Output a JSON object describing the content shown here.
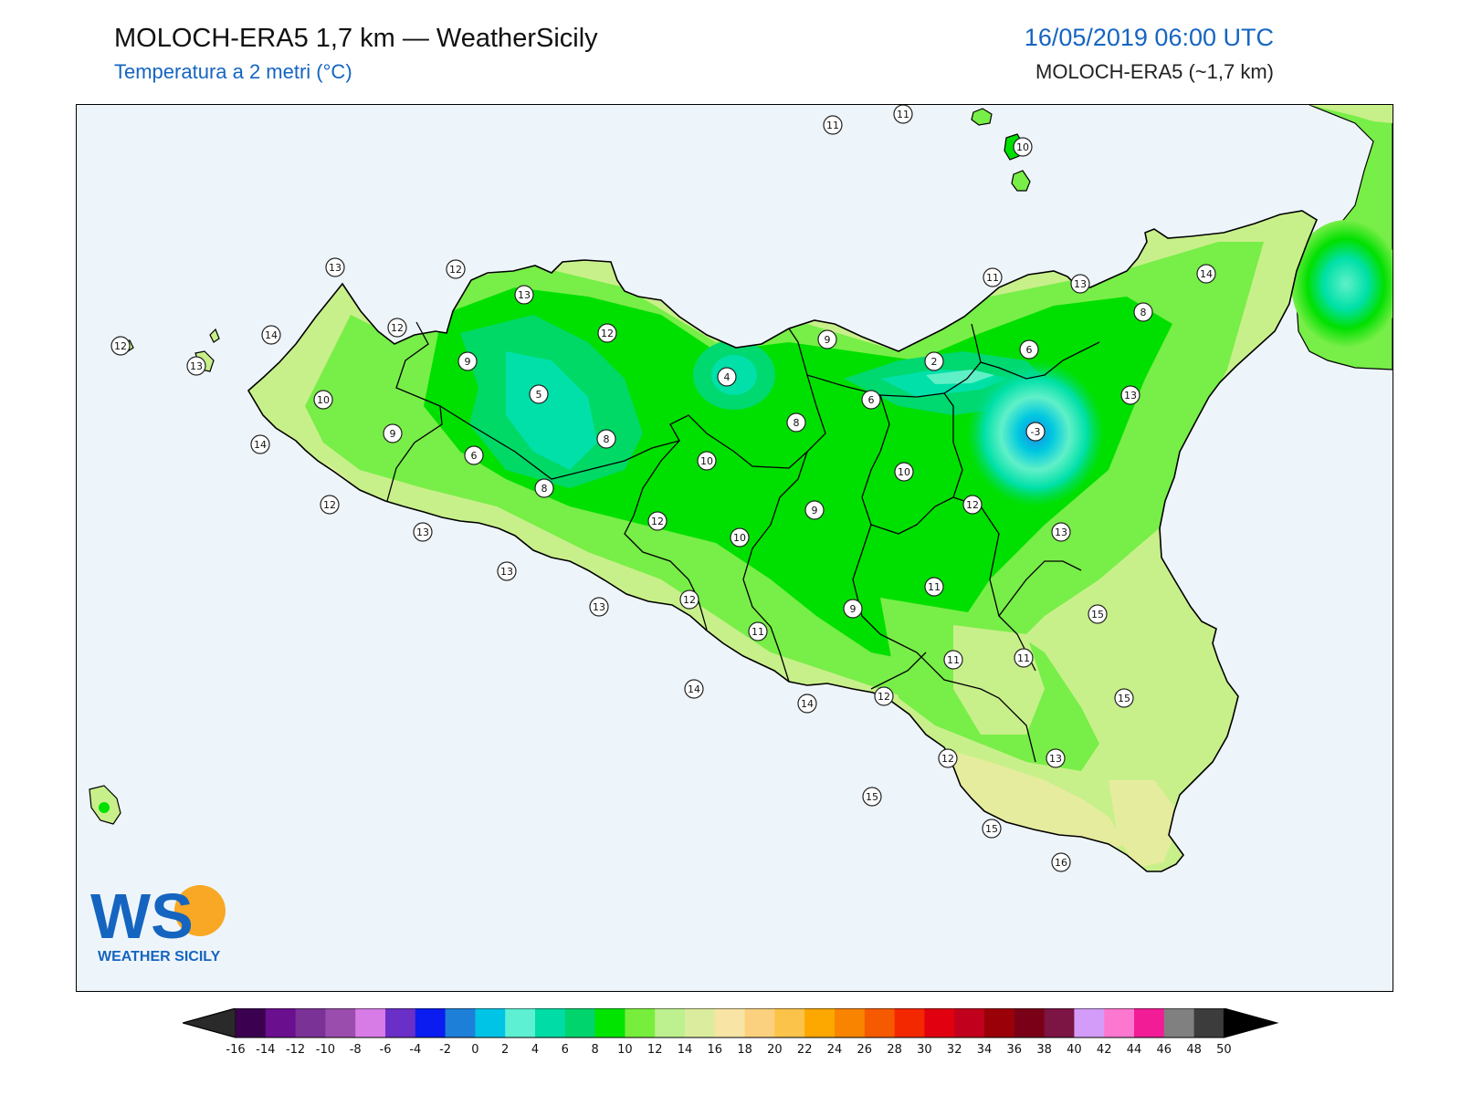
{
  "header": {
    "title": "MOLOCH-ERA5 1,7 km — WeatherSicily",
    "subtitle": "Temperatura a 2 metri (°C)",
    "datetime": "16/05/2019 06:00 UTC",
    "model": "MOLOCH-ERA5 (~1,7 km)"
  },
  "logo": {
    "mark": "WS",
    "text": "WEATHER SICILY"
  },
  "map": {
    "station_labels": [
      "11",
      "11",
      "10",
      "13",
      "12",
      "13",
      "12",
      "14",
      "12",
      "13",
      "9",
      "10",
      "5",
      "9",
      "6",
      "8",
      "8",
      "14",
      "12",
      "13",
      "12",
      "4",
      "8",
      "10",
      "12",
      "10",
      "13",
      "13",
      "12",
      "11",
      "14",
      "9",
      "6",
      "2",
      "6",
      "-3",
      "10",
      "9",
      "12",
      "11",
      "9",
      "11",
      "11",
      "12",
      "14",
      "13",
      "15",
      "15",
      "13",
      "12",
      "15",
      "15",
      "16",
      "11",
      "13",
      "14",
      "8",
      "13"
    ],
    "temperature_colors": {
      "sea": "#eef5fa",
      "t12": "#c8f08a",
      "t10": "#78ee48",
      "t8": "#00e000",
      "t6": "#00d870",
      "t4": "#00e0a8",
      "t2": "#60f0c8",
      "t0": "#00c8e0",
      "tm2": "#1e88e5"
    }
  },
  "colorbar": {
    "ticks": [
      "-16",
      "-14",
      "-12",
      "-10",
      "-8",
      "-6",
      "-4",
      "-2",
      "0",
      "2",
      "4",
      "6",
      "8",
      "10",
      "12",
      "14",
      "16",
      "18",
      "20",
      "22",
      "24",
      "26",
      "28",
      "30",
      "32",
      "34",
      "36",
      "38",
      "40",
      "42",
      "44",
      "46",
      "48",
      "50"
    ],
    "colors": [
      "#3b0050",
      "#6a0f8e",
      "#7b3296",
      "#9b4dad",
      "#d77be6",
      "#6a2fc6",
      "#0a1cf0",
      "#1e7fd8",
      "#00c4e6",
      "#5ef0d2",
      "#00dca6",
      "#00d46c",
      "#00e400",
      "#78ee3c",
      "#bdf08e",
      "#dcec9e",
      "#f8e4a4",
      "#fbd07e",
      "#fcc34a",
      "#fca800",
      "#f88400",
      "#f65a00",
      "#f42800",
      "#e00010",
      "#c0001c",
      "#9a0008",
      "#7a0018",
      "#7c1444",
      "#d29cf8",
      "#fc78d0",
      "#f21c96",
      "#808080",
      "#3c3c3c"
    ]
  }
}
